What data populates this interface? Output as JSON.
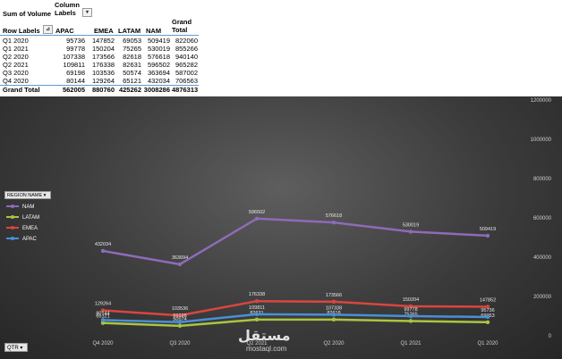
{
  "pivot": {
    "title": "Sum of Volume",
    "column_labels": "Column Labels",
    "row_labels": "Row Labels",
    "headers": [
      "APAC",
      "EMEA",
      "LATAM",
      "NAM",
      "Grand Total"
    ],
    "rows": [
      {
        "label": "Q1 2020",
        "values": [
          "95736",
          "147852",
          "69053",
          "509419",
          "822060"
        ]
      },
      {
        "label": "Q1 2021",
        "values": [
          "99778",
          "150204",
          "75265",
          "530019",
          "855266"
        ]
      },
      {
        "label": "Q2 2020",
        "values": [
          "107338",
          "173566",
          "82618",
          "576618",
          "940140"
        ]
      },
      {
        "label": "Q2 2021",
        "values": [
          "109811",
          "176338",
          "82631",
          "596502",
          "965282"
        ]
      },
      {
        "label": "Q3 2020",
        "values": [
          "69198",
          "103536",
          "50574",
          "363694",
          "587002"
        ]
      },
      {
        "label": "Q4 2020",
        "values": [
          "80144",
          "129264",
          "65121",
          "432034",
          "706563"
        ]
      }
    ],
    "total": {
      "label": "Grand Total",
      "values": [
        "562005",
        "880760",
        "425262",
        "3008286",
        "4876313"
      ]
    }
  },
  "legend": {
    "title": "REGION NAME",
    "items": [
      {
        "name": "NAM",
        "color": "#8e6bb8"
      },
      {
        "name": "LATAM",
        "color": "#a9c63f"
      },
      {
        "name": "EMEA",
        "color": "#d9463f"
      },
      {
        "name": "APAC",
        "color": "#4a8fd6"
      }
    ]
  },
  "filter": {
    "qtr_label": "QTR"
  },
  "watermark": {
    "main": "مستقل",
    "sub": "mostaql.com"
  },
  "chart_data": {
    "type": "line",
    "categories": [
      "Q4 2020",
      "Q3 2020",
      "Q2 2021",
      "Q2 2020",
      "Q1 2021",
      "Q1 2020"
    ],
    "ylim": [
      0,
      1200000
    ],
    "yticks": [
      "0",
      "200000",
      "400000",
      "600000",
      "800000",
      "1000000",
      "1200000"
    ],
    "series": [
      {
        "name": "NAM",
        "color": "#8e6bb8",
        "values": [
          432034,
          363694,
          596502,
          576618,
          530019,
          509419
        ]
      },
      {
        "name": "LATAM",
        "color": "#a9c63f",
        "values": [
          65121,
          50574,
          82631,
          82618,
          75265,
          69053
        ]
      },
      {
        "name": "EMEA",
        "color": "#d9463f",
        "values": [
          129264,
          103536,
          176338,
          173566,
          150204,
          147852
        ]
      },
      {
        "name": "APAC",
        "color": "#4a8fd6",
        "values": [
          80144,
          69198,
          109811,
          107338,
          99778,
          95736
        ]
      }
    ]
  }
}
